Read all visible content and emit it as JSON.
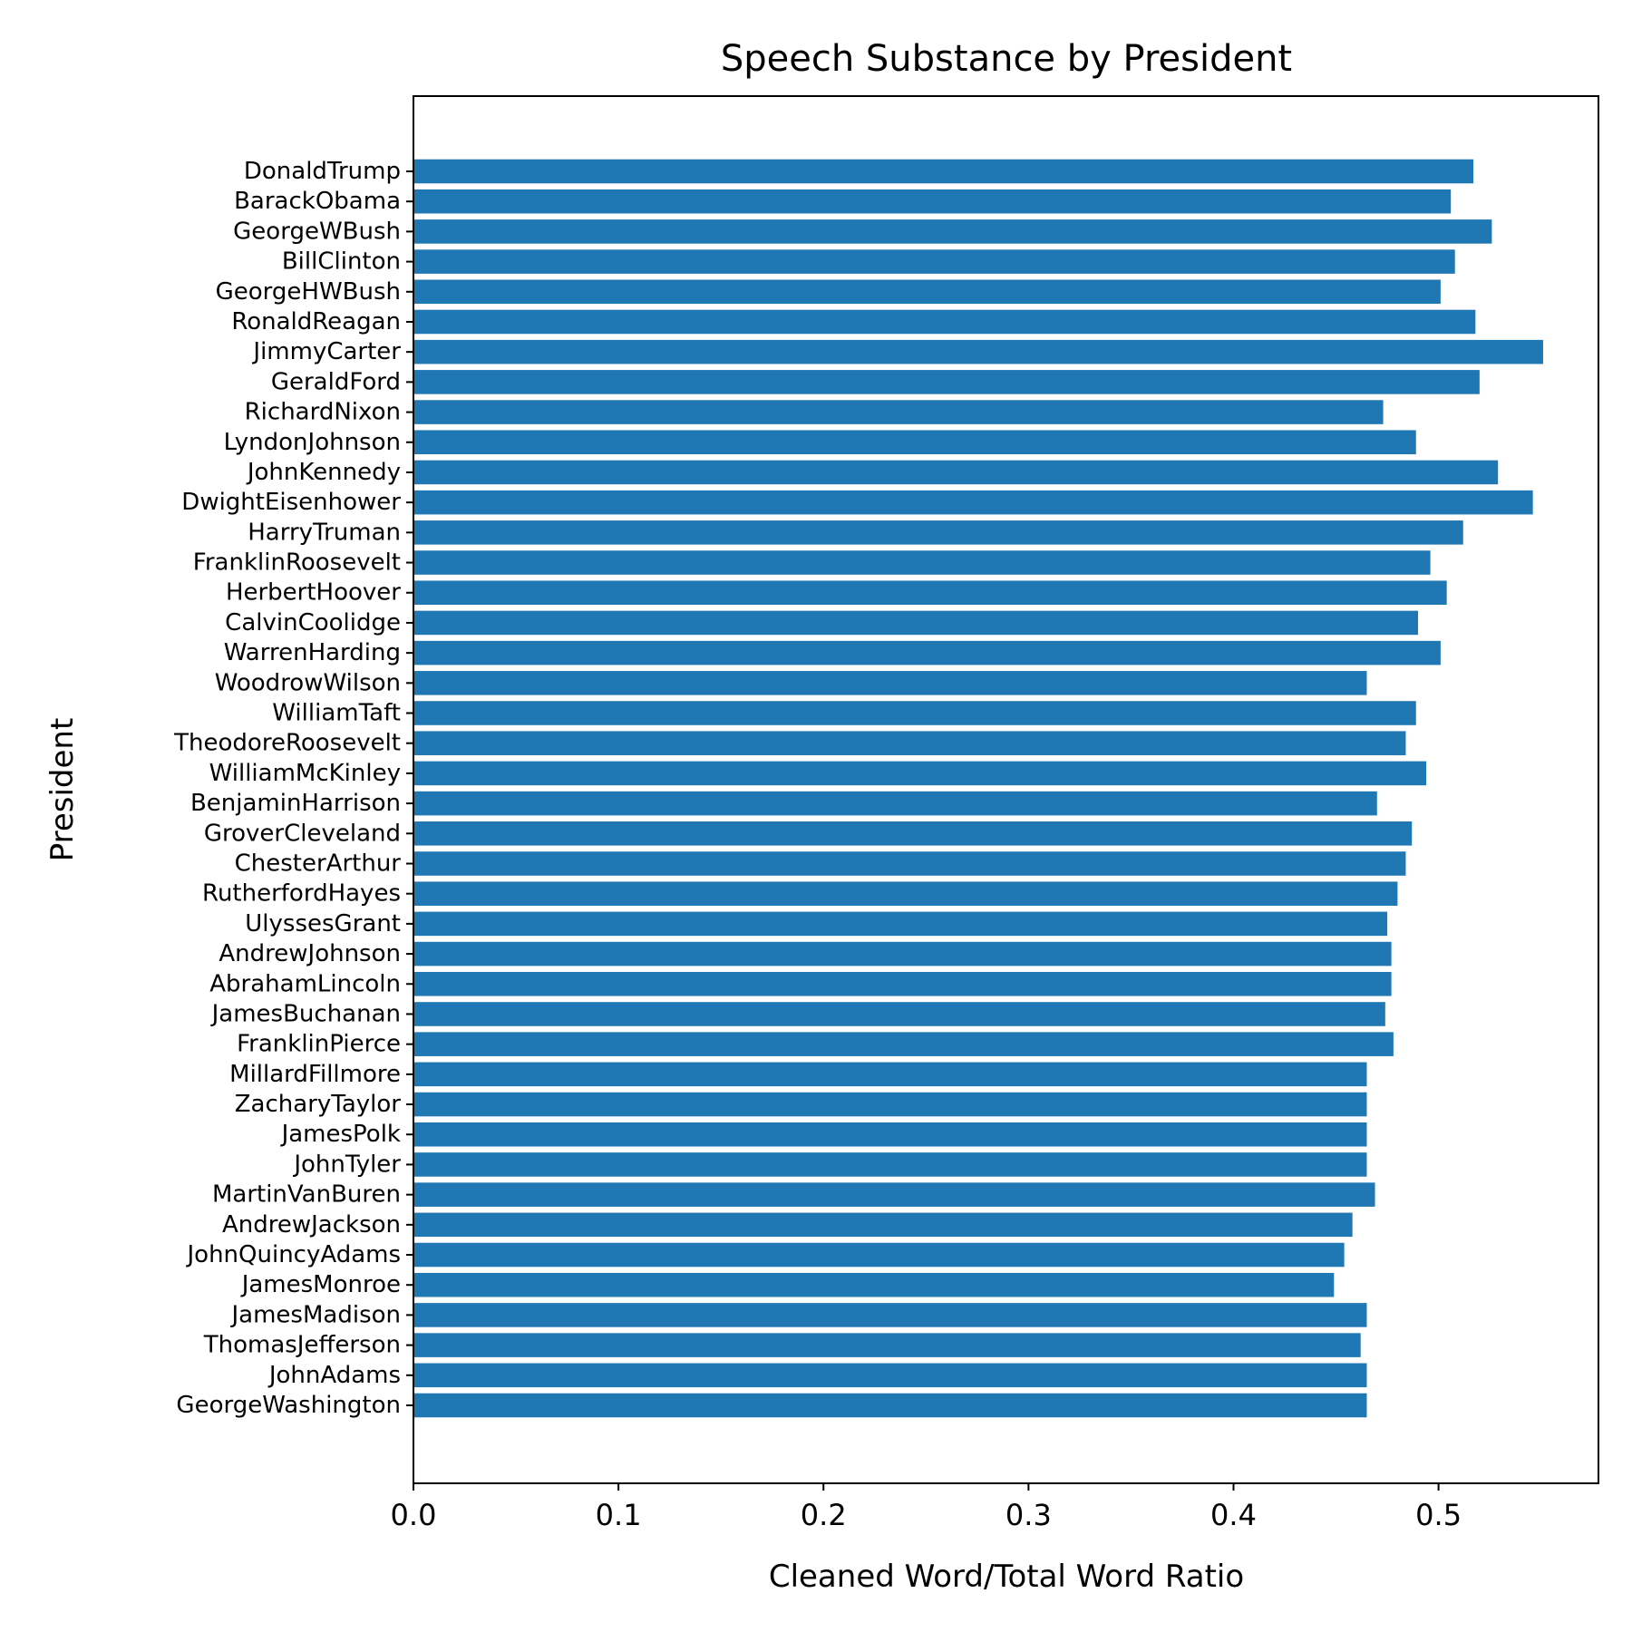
{
  "chart_data": {
    "type": "bar",
    "orientation": "horizontal",
    "title": "Speech Substance by President",
    "xlabel": "Cleaned Word/Total Word Ratio",
    "ylabel": "President",
    "xlim": [
      0,
      0.578
    ],
    "xticks": [
      "0.0",
      "0.1",
      "0.2",
      "0.3",
      "0.4",
      "0.5"
    ],
    "xtick_values": [
      0.0,
      0.1,
      0.2,
      0.3,
      0.4,
      0.5
    ],
    "grid": false,
    "bar_color": "#1f77b4",
    "categories": [
      "DonaldTrump",
      "BarackObama",
      "GeorgeWBush",
      "BillClinton",
      "GeorgeHWBush",
      "RonaldReagan",
      "JimmyCarter",
      "GeraldFord",
      "RichardNixon",
      "LyndonJohnson",
      "JohnKennedy",
      "DwightEisenhower",
      "HarryTruman",
      "FranklinRoosevelt",
      "HerbertHoover",
      "CalvinCoolidge",
      "WarrenHarding",
      "WoodrowWilson",
      "WilliamTaft",
      "TheodoreRoosevelt",
      "WilliamMcKinley",
      "BenjaminHarrison",
      "GroverCleveland",
      "ChesterArthur",
      "RutherfordHayes",
      "UlyssesGrant",
      "AndrewJohnson",
      "AbrahamLincoln",
      "JamesBuchanan",
      "FranklinPierce",
      "MillardFillmore",
      "ZacharyTaylor",
      "JamesPolk",
      "JohnTyler",
      "MartinVanBuren",
      "AndrewJackson",
      "JohnQuincyAdams",
      "JamesMonroe",
      "JamesMadison",
      "ThomasJefferson",
      "JohnAdams",
      "GeorgeWashington"
    ],
    "values": [
      0.517,
      0.506,
      0.526,
      0.508,
      0.501,
      0.518,
      0.551,
      0.52,
      0.473,
      0.489,
      0.529,
      0.546,
      0.512,
      0.496,
      0.504,
      0.49,
      0.501,
      0.465,
      0.489,
      0.484,
      0.494,
      0.47,
      0.487,
      0.484,
      0.48,
      0.475,
      0.477,
      0.477,
      0.474,
      0.478,
      0.465,
      0.465,
      0.465,
      0.465,
      0.469,
      0.458,
      0.454,
      0.449,
      0.465,
      0.462,
      0.465,
      0.465
    ]
  }
}
